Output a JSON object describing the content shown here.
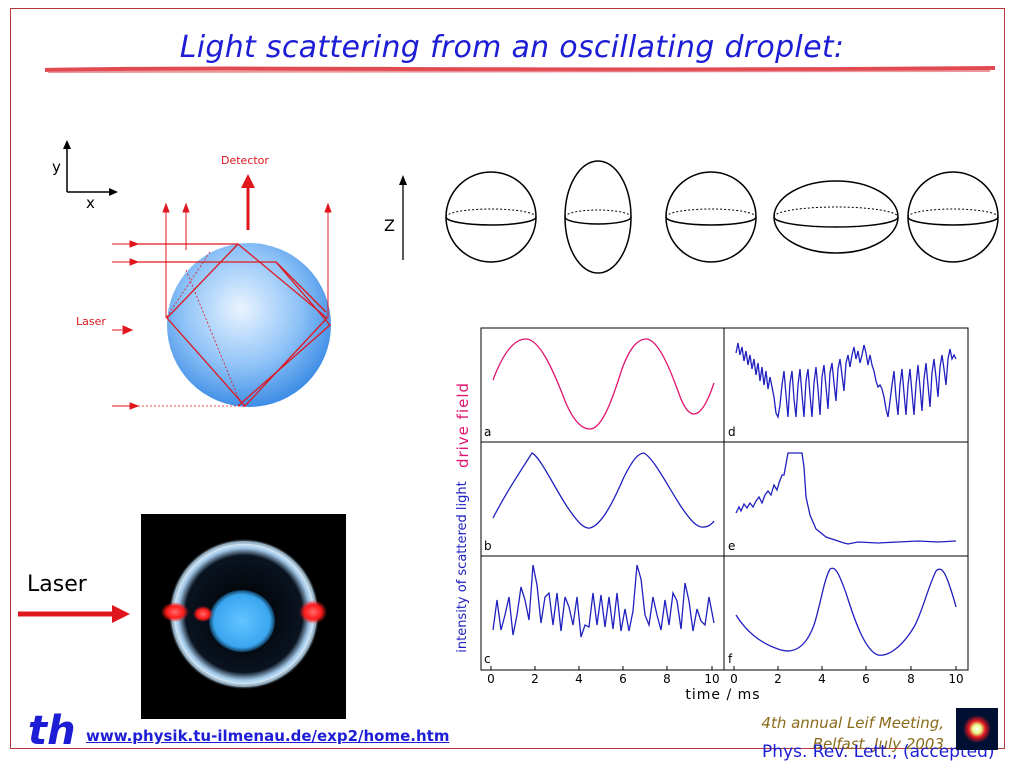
{
  "title": "Light scattering from an oscillating droplet:",
  "schematic": {
    "axis_y": "y",
    "axis_x": "x",
    "detector": "Detector",
    "laser": "Laser"
  },
  "shapes": {
    "axis_label": "Z"
  },
  "photo": {
    "laser_label": "Laser"
  },
  "graph": {
    "ylabel_top": "drive field",
    "ylabel_bottom": "intensity of scattered light",
    "xlabel": "time / ms",
    "ticks_left": [
      "0",
      "2",
      "4",
      "6",
      "8",
      "10"
    ],
    "ticks_right": [
      "0",
      "2",
      "4",
      "6",
      "8",
      "10"
    ],
    "panel_labels": [
      "a",
      "b",
      "c",
      "d",
      "e",
      "f"
    ]
  },
  "footer": {
    "url": "www.physik.tu-ilmenau.de/exp2/home.htm",
    "meeting_line1": "4th annual Leif Meeting,",
    "meeting_line2": "Belfast, July 2003",
    "reference": "Phys. Rev. Lett., (accepted)",
    "logo_text": "th"
  }
}
